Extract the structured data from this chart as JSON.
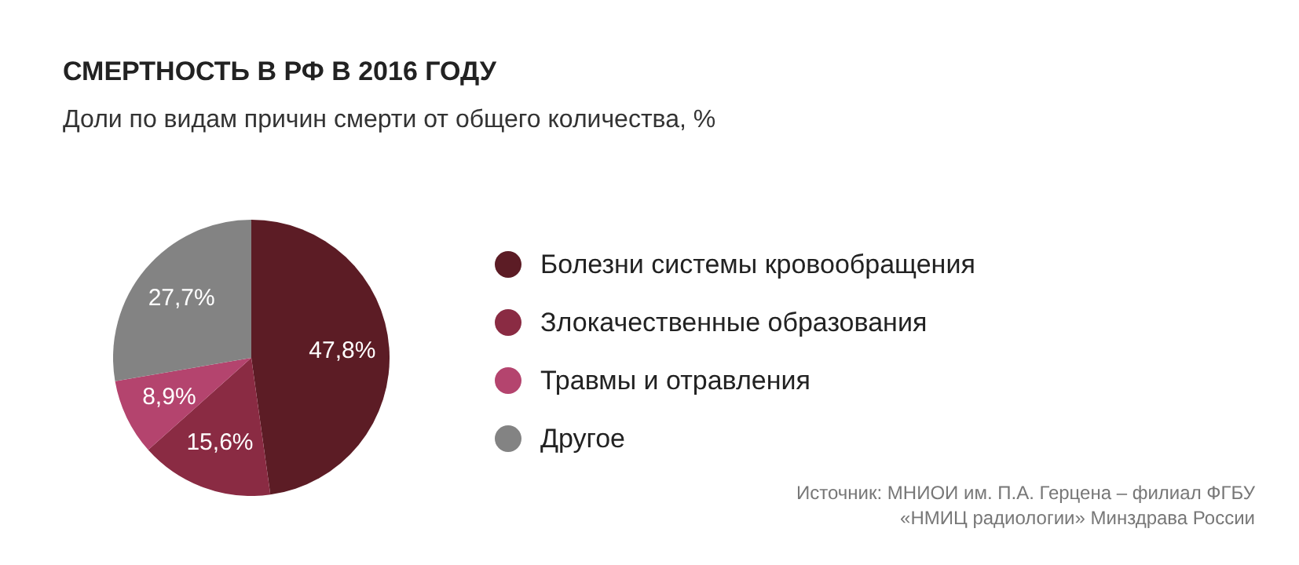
{
  "chart_data": {
    "type": "pie",
    "title": "СМЕРТНОСТЬ В РФ В 2016 ГОДУ",
    "subtitle": "Доли по видам причин смерти от общего количества, %",
    "categories": [
      "Болезни системы кровообращения",
      "Злокачественные образования",
      "Травмы и отравления",
      "Другое"
    ],
    "values": [
      47.8,
      15.6,
      8.9,
      27.7
    ],
    "colors": [
      "#5c1c25",
      "#8a2b43",
      "#b4446e",
      "#838383"
    ],
    "value_labels": [
      "47,8%",
      "15,6%",
      "8,9%",
      "27,7%"
    ],
    "legend": "right",
    "annotations": [
      "Источник: МНИОИ им. П.А. Герцена – филиал ФГБУ",
      "«НМИЦ радиологии» Минздрава России"
    ]
  }
}
